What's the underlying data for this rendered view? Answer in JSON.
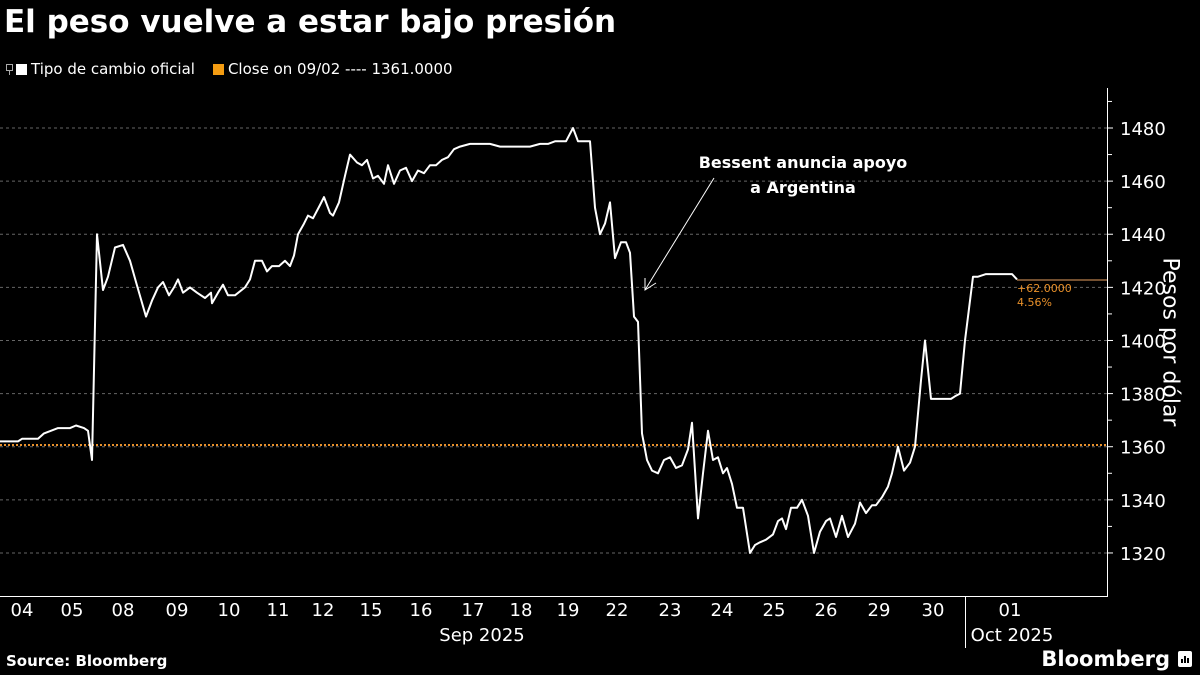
{
  "header": {
    "title": "El peso vuelve a estar bajo presión"
  },
  "legend": {
    "series_label": "Tipo de cambio oficial",
    "series_color": "#ffffff",
    "close_label": "Close on 09/02 ---- 1361.0000",
    "close_color": "#f39c12"
  },
  "annotation": {
    "line1": "Bessent anuncia apoyo",
    "line2": "a Argentina"
  },
  "delta": {
    "value": "+62.0000",
    "percent": "4.56%"
  },
  "axis": {
    "ylabel": "Pesos por dólar"
  },
  "footer": {
    "source": "Source: Bloomberg",
    "brand": "Bloomberg"
  },
  "chart_data": {
    "type": "line",
    "title": "El peso vuelve a estar bajo presión",
    "xlabel": "",
    "ylabel": "Pesos por dólar",
    "ylim": [
      1305,
      1490
    ],
    "yticks": [
      1320,
      1340,
      1360,
      1380,
      1400,
      1420,
      1440,
      1460,
      1480
    ],
    "grid": true,
    "legend_position": "top-left",
    "x_tick_labels": [
      "04",
      "05",
      "08",
      "09",
      "10",
      "11",
      "12",
      "15",
      "16",
      "17",
      "18",
      "19",
      "22",
      "23",
      "24",
      "25",
      "26",
      "29",
      "30",
      "01"
    ],
    "x_group_labels": [
      "Sep 2025",
      "Oct 2025"
    ],
    "reference_line": {
      "label": "Close on 09/02",
      "value": 1361.0,
      "color": "#f39c12"
    },
    "last_change": {
      "abs": 62.0,
      "pct": 4.56
    },
    "annotations": [
      {
        "text": "Bessent anuncia apoyo a Argentina",
        "date": "22"
      }
    ],
    "series": [
      {
        "name": "Tipo de cambio oficial",
        "color": "#ffffff",
        "points": [
          [
            0,
            1362
          ],
          [
            18,
            1362
          ],
          [
            22,
            1363
          ],
          [
            38,
            1363
          ],
          [
            44,
            1365
          ],
          [
            58,
            1367
          ],
          [
            70,
            1367
          ],
          [
            76,
            1368
          ],
          [
            84,
            1367
          ],
          [
            88,
            1366
          ],
          [
            92,
            1355
          ],
          [
            97,
            1440
          ],
          [
            103,
            1419
          ],
          [
            108,
            1424
          ],
          [
            115,
            1435
          ],
          [
            123,
            1436
          ],
          [
            130,
            1430
          ],
          [
            136,
            1422
          ],
          [
            146,
            1409
          ],
          [
            152,
            1415
          ],
          [
            158,
            1420
          ],
          [
            163,
            1422
          ],
          [
            169,
            1417
          ],
          [
            174,
            1420
          ],
          [
            178,
            1423
          ],
          [
            183,
            1418
          ],
          [
            190,
            1420
          ],
          [
            197,
            1418
          ],
          [
            205,
            1416
          ],
          [
            211,
            1418
          ],
          [
            212,
            1414
          ],
          [
            218,
            1418
          ],
          [
            223,
            1421
          ],
          [
            228,
            1417
          ],
          [
            235,
            1417
          ],
          [
            245,
            1420
          ],
          [
            250,
            1423
          ],
          [
            255,
            1430
          ],
          [
            262,
            1430
          ],
          [
            267,
            1426
          ],
          [
            272,
            1428
          ],
          [
            279,
            1428
          ],
          [
            285,
            1430
          ],
          [
            290,
            1428
          ],
          [
            294,
            1432
          ],
          [
            298,
            1440
          ],
          [
            304,
            1444
          ],
          [
            308,
            1447
          ],
          [
            313,
            1446
          ],
          [
            320,
            1451
          ],
          [
            324,
            1454
          ],
          [
            330,
            1448
          ],
          [
            333,
            1447
          ],
          [
            339,
            1452
          ],
          [
            345,
            1462
          ],
          [
            350,
            1470
          ],
          [
            357,
            1467
          ],
          [
            362,
            1466
          ],
          [
            367,
            1468
          ],
          [
            373,
            1461
          ],
          [
            378,
            1462
          ],
          [
            384,
            1459
          ],
          [
            388,
            1466
          ],
          [
            394,
            1459
          ],
          [
            400,
            1464
          ],
          [
            406,
            1465
          ],
          [
            412,
            1460
          ],
          [
            418,
            1464
          ],
          [
            424,
            1463
          ],
          [
            430,
            1466
          ],
          [
            436,
            1466
          ],
          [
            442,
            1468
          ],
          [
            448,
            1469
          ],
          [
            454,
            1472
          ],
          [
            460,
            1473
          ],
          [
            470,
            1474
          ],
          [
            480,
            1474
          ],
          [
            490,
            1474
          ],
          [
            500,
            1473
          ],
          [
            510,
            1473
          ],
          [
            520,
            1473
          ],
          [
            530,
            1473
          ],
          [
            540,
            1474
          ],
          [
            548,
            1474
          ],
          [
            555,
            1475
          ],
          [
            560,
            1475
          ],
          [
            566,
            1475
          ],
          [
            573,
            1480
          ],
          [
            578,
            1475
          ],
          [
            585,
            1475
          ],
          [
            590,
            1475
          ],
          [
            595,
            1450
          ],
          [
            600,
            1440
          ],
          [
            605,
            1444
          ],
          [
            610,
            1452
          ],
          [
            615,
            1431
          ],
          [
            621,
            1437
          ],
          [
            626,
            1437
          ],
          [
            630,
            1433
          ],
          [
            634,
            1409
          ],
          [
            638,
            1407
          ],
          [
            642,
            1365
          ],
          [
            647,
            1355
          ],
          [
            652,
            1351
          ],
          [
            658,
            1350
          ],
          [
            664,
            1355
          ],
          [
            670,
            1356
          ],
          [
            676,
            1352
          ],
          [
            682,
            1353
          ],
          [
            688,
            1359
          ],
          [
            692,
            1369
          ],
          [
            698,
            1333
          ],
          [
            703,
            1350
          ],
          [
            708,
            1366
          ],
          [
            713,
            1355
          ],
          [
            718,
            1356
          ],
          [
            723,
            1350
          ],
          [
            727,
            1352
          ],
          [
            732,
            1346
          ],
          [
            737,
            1337
          ],
          [
            743,
            1337
          ],
          [
            750,
            1320
          ],
          [
            755,
            1323
          ],
          [
            760,
            1324
          ],
          [
            766,
            1325
          ],
          [
            773,
            1327
          ],
          [
            778,
            1332
          ],
          [
            782,
            1333
          ],
          [
            786,
            1329
          ],
          [
            791,
            1337
          ],
          [
            797,
            1337
          ],
          [
            802,
            1340
          ],
          [
            808,
            1334
          ],
          [
            814,
            1320
          ],
          [
            820,
            1328
          ],
          [
            826,
            1332
          ],
          [
            830,
            1333
          ],
          [
            836,
            1326
          ],
          [
            842,
            1334
          ],
          [
            848,
            1326
          ],
          [
            855,
            1331
          ],
          [
            860,
            1339
          ],
          [
            866,
            1335
          ],
          [
            872,
            1338
          ],
          [
            876,
            1338
          ],
          [
            882,
            1341
          ],
          [
            888,
            1345
          ],
          [
            892,
            1350
          ],
          [
            898,
            1360
          ],
          [
            904,
            1351
          ],
          [
            910,
            1354
          ],
          [
            915,
            1360
          ],
          [
            921,
            1385
          ],
          [
            925,
            1400
          ],
          [
            931,
            1378
          ],
          [
            940,
            1378
          ],
          [
            951,
            1378
          ],
          [
            955,
            1379
          ],
          [
            960,
            1380
          ],
          [
            965,
            1400
          ],
          [
            973,
            1424
          ],
          [
            978,
            1424
          ],
          [
            986,
            1425
          ],
          [
            996,
            1425
          ],
          [
            1006,
            1425
          ],
          [
            1012,
            1425
          ],
          [
            1017,
            1423
          ]
        ]
      }
    ]
  }
}
